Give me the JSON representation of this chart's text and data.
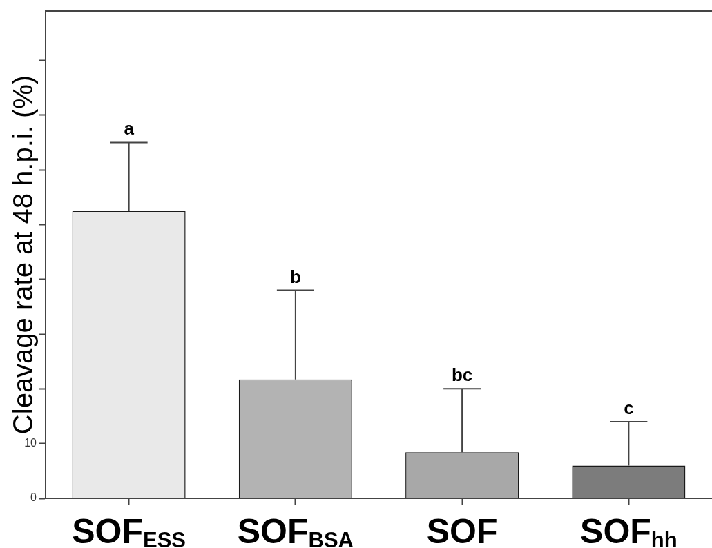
{
  "chart_data": {
    "type": "bar",
    "ylabel": "Cleavage rate at 48 h.p.i. (%)",
    "categories": [
      "SOF$_{ESS}$",
      "SOF$_{BSA}$",
      "SOF",
      "SOF$_{hh}$"
    ],
    "values": [
      52.5,
      21.7,
      8.4,
      6.0
    ],
    "colors": [
      "#e9e9e9",
      "#b3b3b3",
      "#a8a8a8",
      "#7c7c7c"
    ],
    "errors": [
      [
        52.5,
        65.0
      ],
      [
        21.7,
        38.0
      ],
      [
        8.4,
        20.0
      ],
      [
        6.0,
        14.0
      ]
    ],
    "ylim": [
      0,
      89
    ],
    "yticks": [
      0,
      10,
      {
        "value": 20,
        "label": null
      },
      {
        "value": 30,
        "label": null
      },
      {
        "value": 40,
        "label": null
      },
      {
        "value": 50,
        "label": null
      },
      {
        "value": 60,
        "label": null
      },
      {
        "value": 70,
        "label": null
      },
      {
        "value": 80,
        "label": null
      }
    ],
    "grid": false,
    "annotations": [
      {
        "text": "a",
        "x": "SOF$_{ESS}$",
        "y": 65.0
      },
      {
        "text": "b",
        "x": "SOF$_{BSA}$",
        "y": 38.0
      },
      {
        "text": "bc",
        "x": "SOF",
        "y": 20.0
      },
      {
        "text": "c",
        "x": "SOF$_{hh}$",
        "y": 14.0
      }
    ]
  }
}
